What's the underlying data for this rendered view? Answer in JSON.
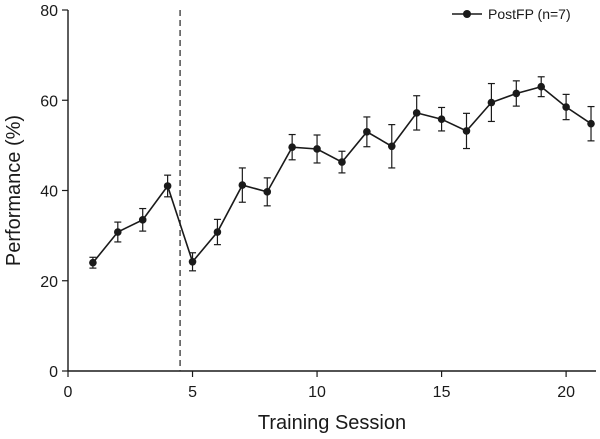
{
  "chart_data": {
    "type": "line",
    "title": "",
    "xlabel": "Training Session",
    "ylabel": "Performance (%)",
    "xlim": [
      0,
      21.2
    ],
    "ylim": [
      0,
      80
    ],
    "xticks": [
      0,
      5,
      10,
      15,
      20
    ],
    "yticks": [
      0,
      20,
      40,
      60,
      80
    ],
    "grid": false,
    "legend_position": "top-right",
    "vertical_marker_x": 4.5,
    "series": [
      {
        "name": "PostFP (n=7)",
        "color": "#1a1a1a",
        "x": [
          1,
          2,
          3,
          4,
          5,
          6,
          7,
          8,
          9,
          10,
          11,
          12,
          13,
          14,
          15,
          16,
          17,
          18,
          19,
          20,
          21
        ],
        "y": [
          24,
          30.8,
          33.5,
          41,
          24.2,
          30.8,
          41.2,
          39.7,
          49.6,
          49.2,
          46.3,
          53,
          49.8,
          57.2,
          55.8,
          53.2,
          59.5,
          61.5,
          63,
          58.5,
          54.8
        ],
        "error": [
          1.2,
          2.2,
          2.5,
          2.4,
          2.0,
          2.8,
          3.8,
          3.1,
          2.8,
          3.1,
          2.4,
          3.3,
          4.8,
          3.8,
          2.6,
          3.9,
          4.2,
          2.8,
          2.2,
          2.8,
          3.8
        ]
      }
    ]
  }
}
